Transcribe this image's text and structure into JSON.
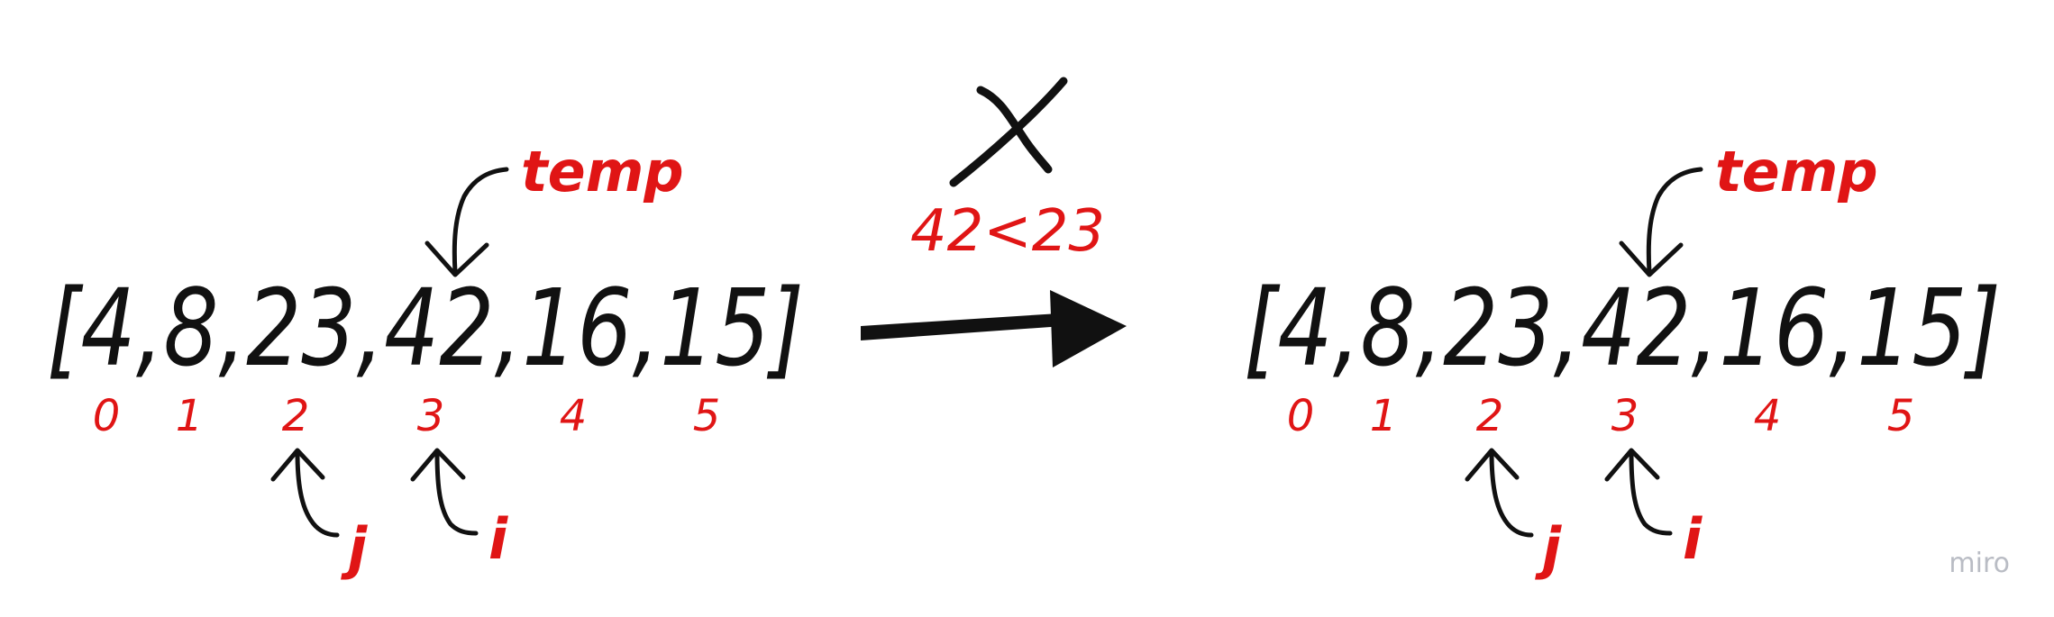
{
  "left": {
    "array": "[4,8,23,42,16,15]",
    "indices": [
      "0",
      "1",
      "2",
      "3",
      "4",
      "5"
    ],
    "temp_label": "temp",
    "j_label": "j",
    "i_label": "i"
  },
  "comparison": {
    "expression": "42<23",
    "result_mark": "cross-mark-icon"
  },
  "right": {
    "array": "[4,8,23,42,16,15]",
    "indices": [
      "0",
      "1",
      "2",
      "3",
      "4",
      "5"
    ],
    "temp_label": "temp",
    "j_label": "j",
    "i_label": "i"
  },
  "watermark": "miro",
  "colors": {
    "ink": "#111111",
    "accent": "#e01515",
    "watermark": "#b9bcc4"
  }
}
